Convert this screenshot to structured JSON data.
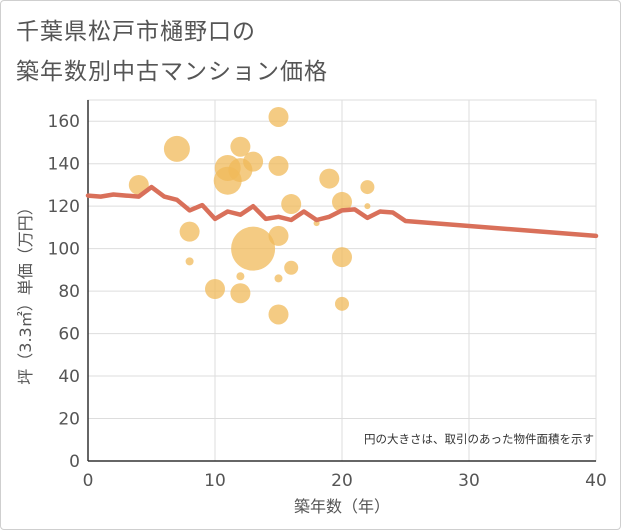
{
  "chart_data": {
    "type": "scatter",
    "title_lines": [
      "千葉県松戸市樋野口の",
      "築年数別中古マンション価格"
    ],
    "xlabel": "築年数（年）",
    "ylabel": "坪（3.3㎡）単価（万円）",
    "note": "円の大きさは、取引のあった物件面積を示す",
    "xlim": [
      0,
      40
    ],
    "ylim": [
      0,
      170
    ],
    "x_ticks": [
      "0",
      "10",
      "20",
      "30",
      "40"
    ],
    "y_ticks": [
      "0",
      "20",
      "40",
      "60",
      "80",
      "100",
      "120",
      "140",
      "160"
    ],
    "grid": true,
    "colors": {
      "bubble": "#f0b95a",
      "line": "#d9705a"
    },
    "series": [
      {
        "type": "bubble",
        "points": [
          {
            "x": 4,
            "y": 130,
            "size": 10
          },
          {
            "x": 7,
            "y": 147,
            "size": 13
          },
          {
            "x": 8,
            "y": 108,
            "size": 10
          },
          {
            "x": 8,
            "y": 94,
            "size": 4
          },
          {
            "x": 10,
            "y": 81,
            "size": 10
          },
          {
            "x": 11,
            "y": 138,
            "size": 13
          },
          {
            "x": 11,
            "y": 132,
            "size": 14
          },
          {
            "x": 12,
            "y": 148,
            "size": 10
          },
          {
            "x": 12,
            "y": 137,
            "size": 12
          },
          {
            "x": 12,
            "y": 87,
            "size": 4
          },
          {
            "x": 12,
            "y": 79,
            "size": 10
          },
          {
            "x": 13,
            "y": 141,
            "size": 10
          },
          {
            "x": 13,
            "y": 100,
            "size": 22
          },
          {
            "x": 15,
            "y": 162,
            "size": 10
          },
          {
            "x": 15,
            "y": 139,
            "size": 10
          },
          {
            "x": 15,
            "y": 106,
            "size": 10
          },
          {
            "x": 15,
            "y": 86,
            "size": 4
          },
          {
            "x": 15,
            "y": 69,
            "size": 10
          },
          {
            "x": 16,
            "y": 121,
            "size": 10
          },
          {
            "x": 16,
            "y": 91,
            "size": 7
          },
          {
            "x": 18,
            "y": 112,
            "size": 3
          },
          {
            "x": 19,
            "y": 133,
            "size": 10
          },
          {
            "x": 20,
            "y": 122,
            "size": 10
          },
          {
            "x": 20,
            "y": 96,
            "size": 10
          },
          {
            "x": 20,
            "y": 74,
            "size": 7
          },
          {
            "x": 22,
            "y": 129,
            "size": 7
          },
          {
            "x": 22,
            "y": 120,
            "size": 3
          }
        ]
      },
      {
        "type": "line",
        "points": [
          {
            "x": 0,
            "y": 125
          },
          {
            "x": 1,
            "y": 124.5
          },
          {
            "x": 2,
            "y": 125.5
          },
          {
            "x": 3,
            "y": 125
          },
          {
            "x": 4,
            "y": 124.5
          },
          {
            "x": 5,
            "y": 129
          },
          {
            "x": 6,
            "y": 124.5
          },
          {
            "x": 7,
            "y": 123
          },
          {
            "x": 8,
            "y": 118
          },
          {
            "x": 9,
            "y": 120.5
          },
          {
            "x": 10,
            "y": 114
          },
          {
            "x": 11,
            "y": 117.5
          },
          {
            "x": 12,
            "y": 116
          },
          {
            "x": 13,
            "y": 120
          },
          {
            "x": 14,
            "y": 114
          },
          {
            "x": 15,
            "y": 115
          },
          {
            "x": 16,
            "y": 113.5
          },
          {
            "x": 17,
            "y": 117.5
          },
          {
            "x": 18,
            "y": 113.5
          },
          {
            "x": 19,
            "y": 115
          },
          {
            "x": 20,
            "y": 118
          },
          {
            "x": 21,
            "y": 118.5
          },
          {
            "x": 22,
            "y": 114.5
          },
          {
            "x": 23,
            "y": 117.5
          },
          {
            "x": 24,
            "y": 117
          },
          {
            "x": 25,
            "y": 113
          },
          {
            "x": 40,
            "y": 106
          }
        ]
      }
    ]
  }
}
